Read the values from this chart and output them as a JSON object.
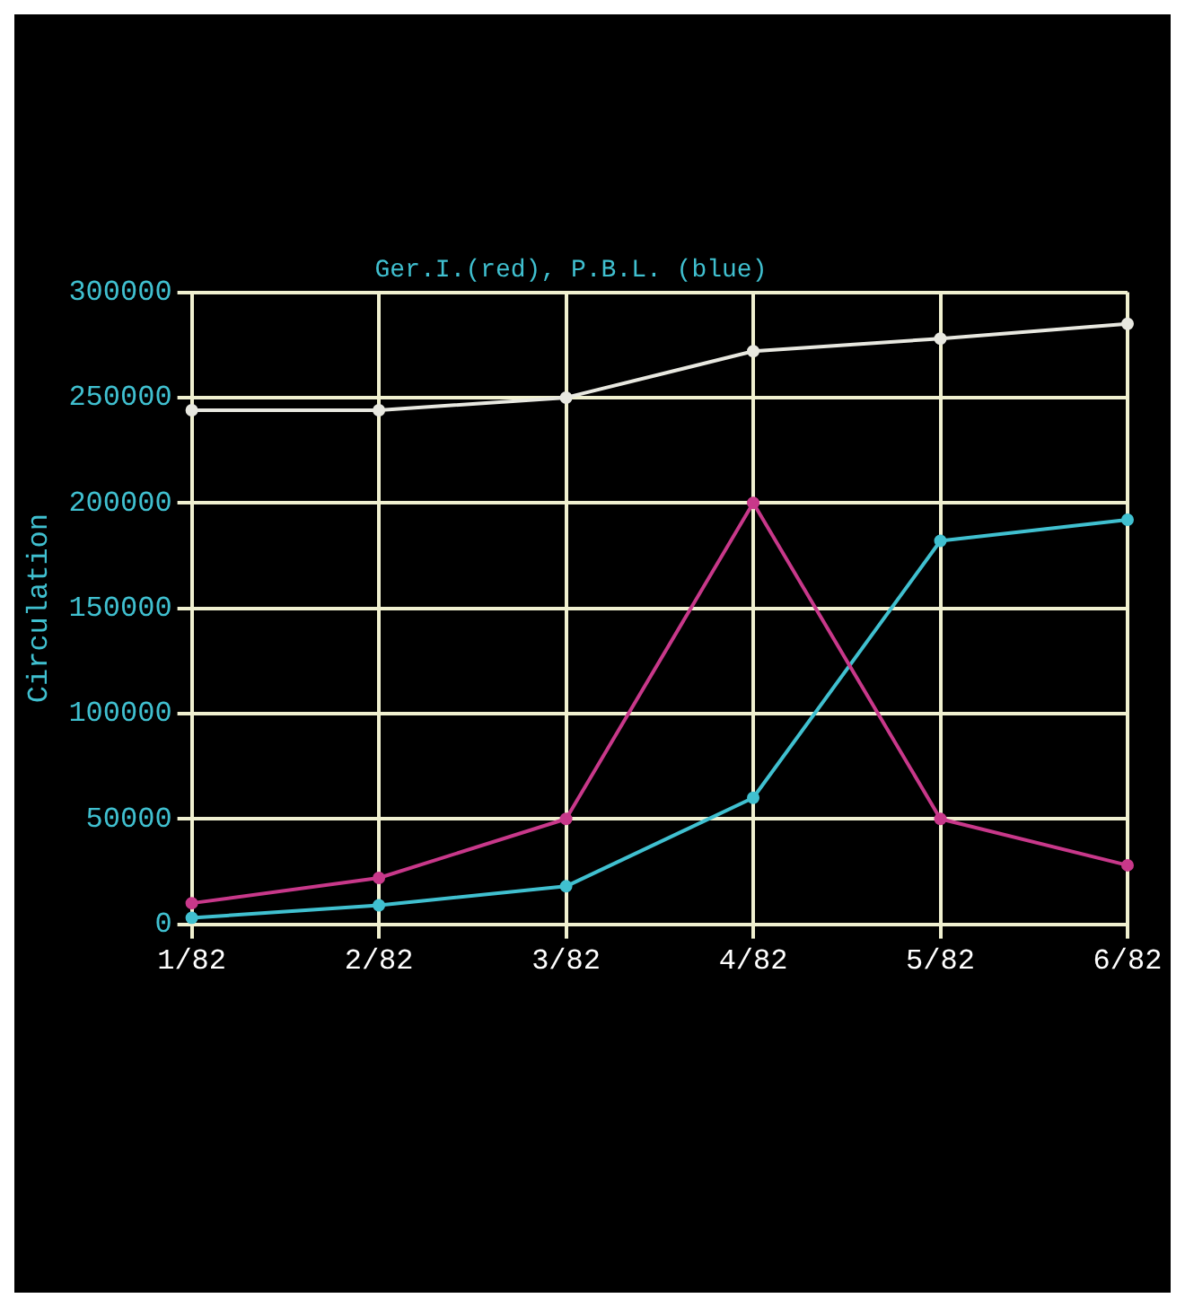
{
  "chart_data": {
    "type": "line",
    "title": "Ger.I.(red), P.B.L. (blue)",
    "ylabel": "Circulation",
    "categories": [
      "1/82",
      "2/82",
      "3/82",
      "4/82",
      "5/82",
      "6/82"
    ],
    "series": [
      {
        "color": "#e8e8e0",
        "values": [
          244000,
          244000,
          250000,
          272000,
          278000,
          285000
        ]
      },
      {
        "color": "#c8388a",
        "values": [
          10000,
          22000,
          50000,
          200000,
          50000,
          28000
        ]
      },
      {
        "color": "#40c0d0",
        "values": [
          3000,
          9000,
          18000,
          60000,
          182000,
          192000
        ]
      }
    ],
    "ylim": [
      0,
      300000
    ],
    "yticks": [
      0,
      50000,
      100000,
      150000,
      200000,
      250000,
      300000
    ],
    "grid": true,
    "legend": false,
    "marker": "circle",
    "line_style": "solid"
  }
}
